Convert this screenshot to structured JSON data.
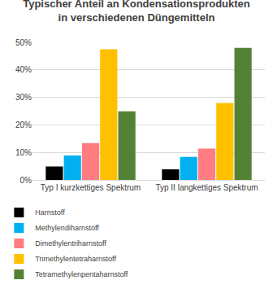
{
  "chart_data": {
    "type": "bar",
    "title": "Typischer Anteil an Kondensationsprodukten\nin verschiedenen Düngemitteln",
    "categories": [
      "Typ I kurzkettiges Spektrum",
      "Typ II langkettiges Spektrum"
    ],
    "series": [
      {
        "name": "Harnstoff",
        "color": "#000000",
        "values": [
          5,
          4
        ]
      },
      {
        "name": "Methylendiharnstoff",
        "color": "#00b0f0",
        "values": [
          9,
          8.5
        ]
      },
      {
        "name": "Dimethylentriharnstoff",
        "color": "#ff7c80",
        "values": [
          13.5,
          11.5
        ]
      },
      {
        "name": "Trimethylentetraharnstoff",
        "color": "#ffc000",
        "values": [
          47.5,
          28
        ]
      },
      {
        "name": "Tetramethylenpentaharnstoff",
        "color": "#548235",
        "values": [
          25,
          48
        ]
      }
    ],
    "ylim": [
      0,
      50
    ],
    "yticks": [
      {
        "value": 0,
        "label": "0%"
      },
      {
        "value": 10,
        "label": "10%"
      },
      {
        "value": 20,
        "label": "20%"
      },
      {
        "value": 30,
        "label": "30%"
      },
      {
        "value": 40,
        "label": "40%"
      },
      {
        "value": 50,
        "label": "50%"
      }
    ],
    "grid": true,
    "legend": "bottom"
  }
}
